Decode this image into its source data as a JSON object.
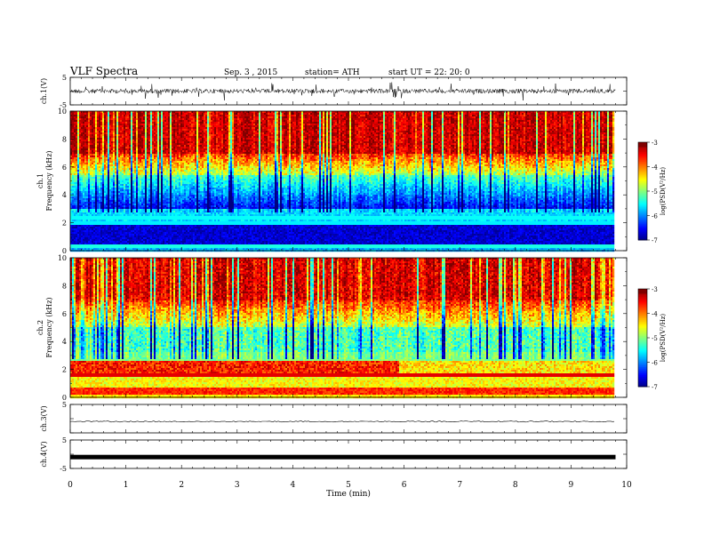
{
  "header": {
    "title": "VLF  Spectra",
    "date": "Sep. 3  , 2015",
    "station": "station= ATH",
    "start": "start  UT =   22: 20: 0"
  },
  "chart_data": [
    {
      "type": "line",
      "name": "ch1-waveform",
      "ylabel": "ch.1(V)",
      "ylim": [
        -5,
        5
      ],
      "yticks": [
        "5",
        "-5"
      ],
      "description_level": 0
    },
    {
      "type": "heatmap",
      "name": "ch1-spectrogram",
      "ylabel_channel": "ch.1",
      "ylabel": "Frequency  (kHz)",
      "ylim": [
        0,
        10
      ],
      "yticks": [
        "0",
        "2",
        "4",
        "6",
        "8",
        "10"
      ],
      "colorbar": {
        "label": "log(PSD(V²/Hz)",
        "range": [
          -7,
          -3
        ],
        "ticks": [
          "-3",
          "-4",
          "-5",
          "-6",
          "-7"
        ]
      }
    },
    {
      "type": "heatmap",
      "name": "ch2-spectrogram",
      "ylabel_channel": "ch.2",
      "ylabel": "Frequency  (kHz)",
      "ylim": [
        0,
        10
      ],
      "yticks": [
        "0",
        "2",
        "4",
        "6",
        "8",
        "10"
      ],
      "colorbar": {
        "label": "log(PSD(V²/Hz)",
        "range": [
          -7,
          -3
        ],
        "ticks": [
          "-3",
          "-4",
          "-5",
          "-6",
          "-7"
        ]
      }
    },
    {
      "type": "line",
      "name": "ch3-waveform",
      "ylabel": "ch.3(V)",
      "ylim": [
        -5,
        5
      ],
      "yticks": [
        "5"
      ],
      "description_level": -1
    },
    {
      "type": "line",
      "name": "ch4-waveform",
      "ylabel": "ch.4(V)",
      "ylim": [
        -5,
        5
      ],
      "yticks": [
        "5",
        "-5"
      ],
      "description_level": -1
    }
  ],
  "x_axis": {
    "label": "Time  (min)",
    "range": [
      0,
      10
    ],
    "data_end": 9.8,
    "ticks": [
      "0",
      "1",
      "2",
      "3",
      "4",
      "5",
      "6",
      "7",
      "8",
      "9",
      "10"
    ]
  }
}
